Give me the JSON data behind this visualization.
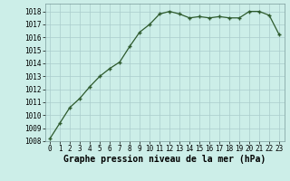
{
  "x": [
    0,
    1,
    2,
    3,
    4,
    5,
    6,
    7,
    8,
    9,
    10,
    11,
    12,
    13,
    14,
    15,
    16,
    17,
    18,
    19,
    20,
    21,
    22,
    23
  ],
  "y": [
    1008.2,
    1009.4,
    1010.6,
    1011.3,
    1012.2,
    1013.0,
    1013.6,
    1014.1,
    1015.3,
    1016.4,
    1017.0,
    1017.8,
    1018.0,
    1017.8,
    1017.5,
    1017.6,
    1017.5,
    1017.6,
    1017.5,
    1017.5,
    1018.0,
    1018.0,
    1017.7,
    1016.2
  ],
  "line_color": "#2d5a2d",
  "marker": "+",
  "marker_color": "#2d5a2d",
  "bg_color": "#cceee8",
  "grid_color": "#aacccc",
  "xlabel": "Graphe pression niveau de la mer (hPa)",
  "xlabel_fontsize": 7,
  "ylim": [
    1008,
    1018.6
  ],
  "yticks": [
    1008,
    1009,
    1010,
    1011,
    1012,
    1013,
    1014,
    1015,
    1016,
    1017,
    1018
  ],
  "xticks": [
    0,
    1,
    2,
    3,
    4,
    5,
    6,
    7,
    8,
    9,
    10,
    11,
    12,
    13,
    14,
    15,
    16,
    17,
    18,
    19,
    20,
    21,
    22,
    23
  ],
  "tick_fontsize": 5.5,
  "line_width": 0.9,
  "marker_size": 3.5
}
